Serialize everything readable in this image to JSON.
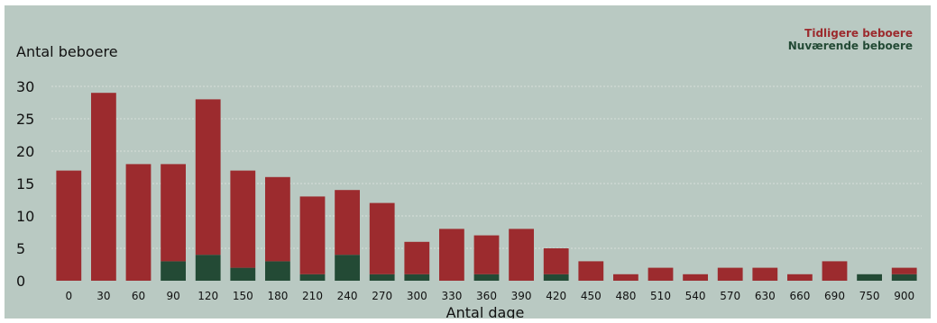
{
  "chart_data": {
    "type": "bar",
    "stacked": true,
    "ylabel": "Antal beboere",
    "xlabel": "Antal dage",
    "ylim": [
      0,
      30
    ],
    "yticks": [
      0,
      5,
      10,
      15,
      20,
      25,
      30
    ],
    "grid": true,
    "legend_position": "top-right",
    "categories": [
      "0",
      "30",
      "60",
      "90",
      "120",
      "150",
      "180",
      "210",
      "240",
      "270",
      "300",
      "330",
      "360",
      "390",
      "420",
      "450",
      "480",
      "510",
      "540",
      "570",
      "630",
      "660",
      "690",
      "750",
      "900"
    ],
    "series": [
      {
        "name": "Nuværende beboere",
        "color": "#234a35",
        "values": [
          0,
          0,
          0,
          3,
          4,
          2,
          3,
          1,
          4,
          1,
          1,
          0,
          1,
          0,
          1,
          0,
          0,
          0,
          0,
          0,
          0,
          0,
          0,
          1,
          1
        ]
      },
      {
        "name": "Tidligere beboere",
        "color": "#9c2b2e",
        "values": [
          17,
          29,
          18,
          15,
          24,
          15,
          13,
          12,
          10,
          11,
          5,
          8,
          6,
          8,
          4,
          3,
          1,
          2,
          1,
          2,
          2,
          1,
          3,
          0,
          1
        ]
      }
    ],
    "legend_order": [
      "Tidligere beboere",
      "Nuværende beboere"
    ]
  }
}
